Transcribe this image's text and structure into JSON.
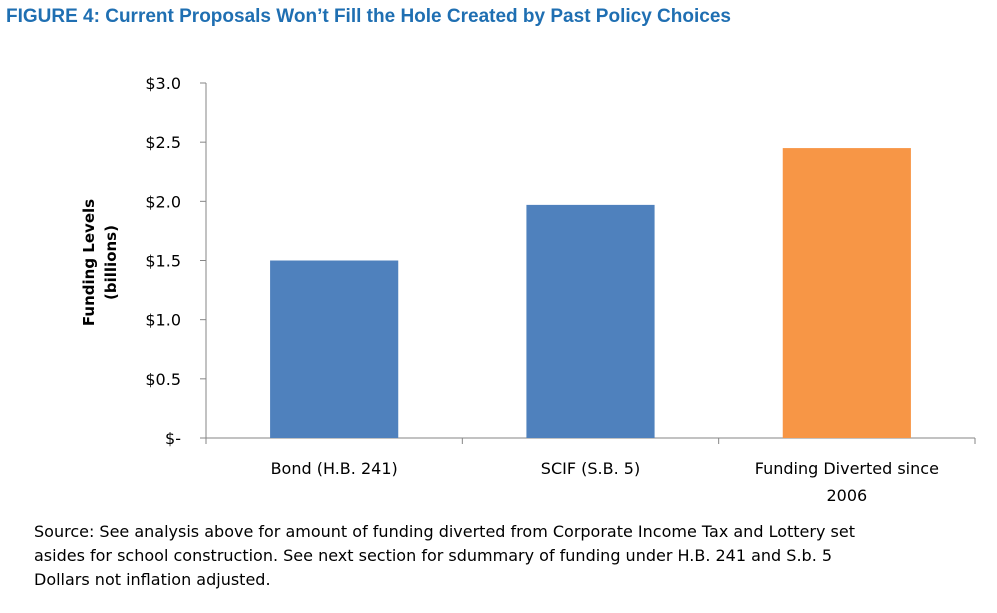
{
  "title": "FIGURE 4: Current Proposals Won’t Fill the Hole Created by Past Policy Choices",
  "chart_data": {
    "type": "bar",
    "categories": [
      "Bond (H.B. 241)",
      "SCIF (S.B. 5)",
      "Funding Diverted since 2006"
    ],
    "category_lines": [
      [
        "Bond (H.B. 241)"
      ],
      [
        "SCIF (S.B. 5)"
      ],
      [
        "Funding Diverted since",
        "2006"
      ]
    ],
    "values": [
      1.5,
      1.97,
      2.45
    ],
    "colors": [
      "#4f81bd",
      "#4f81bd",
      "#f79646"
    ],
    "ylabel_lines": [
      "Funding Levels",
      "(billions)"
    ],
    "ylim": [
      0,
      3.0
    ],
    "yticks": [
      0,
      0.5,
      1.0,
      1.5,
      2.0,
      2.5,
      3.0
    ],
    "ytick_labels": [
      "$-",
      "$0.5",
      "$1.0",
      "$1.5",
      "$2.0",
      "$2.5",
      "$3.0"
    ],
    "grid": false,
    "legend": "none"
  },
  "source_lines": [
    "Source: See analysis above for amount of funding diverted from Corporate Income Tax and Lottery set",
    "asides for school construction. See next section for sdummary of funding under H.B. 241 and S.b. 5",
    "Dollars not inflation adjusted."
  ]
}
